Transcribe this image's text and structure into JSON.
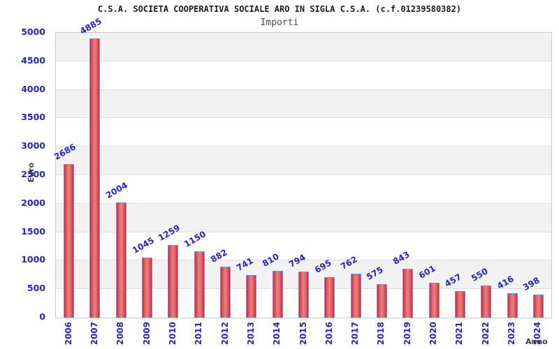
{
  "header": {
    "title": "C.S.A. SOCIETA COOPERATIVA SOCIALE ARO IN SIGLA C.S.A. (c.f.01239580382)",
    "subtitle": "Importi"
  },
  "chart_data": {
    "type": "bar",
    "title": "Importi",
    "categories": [
      "2006",
      "2007",
      "2008",
      "2009",
      "2010",
      "2011",
      "2012",
      "2013",
      "2014",
      "2015",
      "2016",
      "2017",
      "2018",
      "2019",
      "2020",
      "2021",
      "2022",
      "2023",
      "2024"
    ],
    "values": [
      2686,
      4885,
      2004,
      1045,
      1259,
      1150,
      882,
      741,
      810,
      794,
      695,
      762,
      575,
      843,
      601,
      457,
      550,
      416,
      398
    ],
    "xlabel": "Anno",
    "ylabel": "Euro",
    "ylim": [
      0,
      5000
    ],
    "ytick_step": 500,
    "grid": "alternating-horizontal-bands",
    "legend": "none",
    "colors": {
      "bar_edge_red": "#ec1626",
      "bar_mid_red": "#d28b8b",
      "bar_border_blue": "#5a9ff2",
      "tick_label_blue": "#2323cd",
      "axis_title_gray": "#3d3d3d",
      "band_gray": "#f2f2f2",
      "gridline": "#dedede",
      "plot_border": "#c9c9c9"
    }
  }
}
